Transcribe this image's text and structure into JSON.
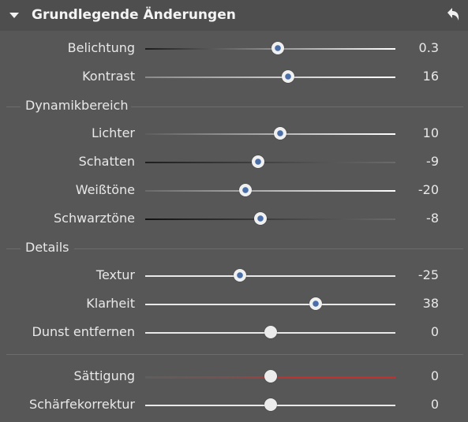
{
  "panel": {
    "title": "Grundlegende Änderungen",
    "toggle_icon": "triangle-down-icon",
    "undo_icon": "undo-icon"
  },
  "sliders": [
    {
      "id": "belichtung",
      "label": "Belichtung",
      "value": "0.3",
      "fraction": 0.53,
      "track": "exposure",
      "thumb": "blue"
    },
    {
      "id": "kontrast",
      "label": "Kontrast",
      "value": "16",
      "fraction": 0.57,
      "track": "contrast",
      "thumb": "blue"
    },
    {
      "id": "lichter",
      "label": "Lichter",
      "value": "10",
      "fraction": 0.54,
      "track": "highlights",
      "thumb": "blue"
    },
    {
      "id": "schatten",
      "label": "Schatten",
      "value": "-9",
      "fraction": 0.45,
      "track": "shadows",
      "thumb": "blue"
    },
    {
      "id": "weisstoene",
      "label": "Weißtöne",
      "value": "-20",
      "fraction": 0.4,
      "track": "whites",
      "thumb": "blue"
    },
    {
      "id": "schwarztoene",
      "label": "Schwarztöne",
      "value": "-8",
      "fraction": 0.46,
      "track": "blacks",
      "thumb": "blue"
    },
    {
      "id": "textur",
      "label": "Textur",
      "value": "-25",
      "fraction": 0.38,
      "track": "plain",
      "thumb": "blue"
    },
    {
      "id": "klarheit",
      "label": "Klarheit",
      "value": "38",
      "fraction": 0.68,
      "track": "plain",
      "thumb": "blue"
    },
    {
      "id": "dunst",
      "label": "Dunst entfernen",
      "value": "0",
      "fraction": 0.5,
      "track": "plain",
      "thumb": "neutral"
    },
    {
      "id": "saettigung",
      "label": "Sättigung",
      "value": "0",
      "fraction": 0.5,
      "track": "saturation",
      "thumb": "neutral"
    },
    {
      "id": "schaerfekorrektur",
      "label": "Schärfekorrektur",
      "value": "0",
      "fraction": 0.5,
      "track": "plain",
      "thumb": "neutral"
    }
  ],
  "sections": {
    "dynamik": "Dynamikbereich",
    "details": "Details"
  },
  "colors": {
    "thumb_center": "#4a6ea8",
    "saturation_red": "#c0302c",
    "panel_bg": "#575757",
    "header_bg": "#4e4e4e"
  }
}
